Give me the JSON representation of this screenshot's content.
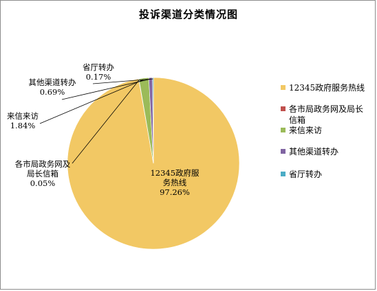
{
  "chart_data": {
    "type": "pie",
    "title": "投诉渠道分类情况图",
    "categories": [
      "12345政府服务热线",
      "各市局政务网及局长信箱",
      "来信来访",
      "其他渠道转办",
      "省厅转办"
    ],
    "values": [
      97.26,
      0.05,
      1.84,
      0.69,
      0.17
    ],
    "value_labels": [
      "97.26%",
      "0.05%",
      "1.84%",
      "0.69%",
      "0.17%"
    ],
    "colors": [
      "#f2c864",
      "#c0504d",
      "#9bbb59",
      "#8064a2",
      "#4bacc6"
    ],
    "legend_position": "right"
  }
}
